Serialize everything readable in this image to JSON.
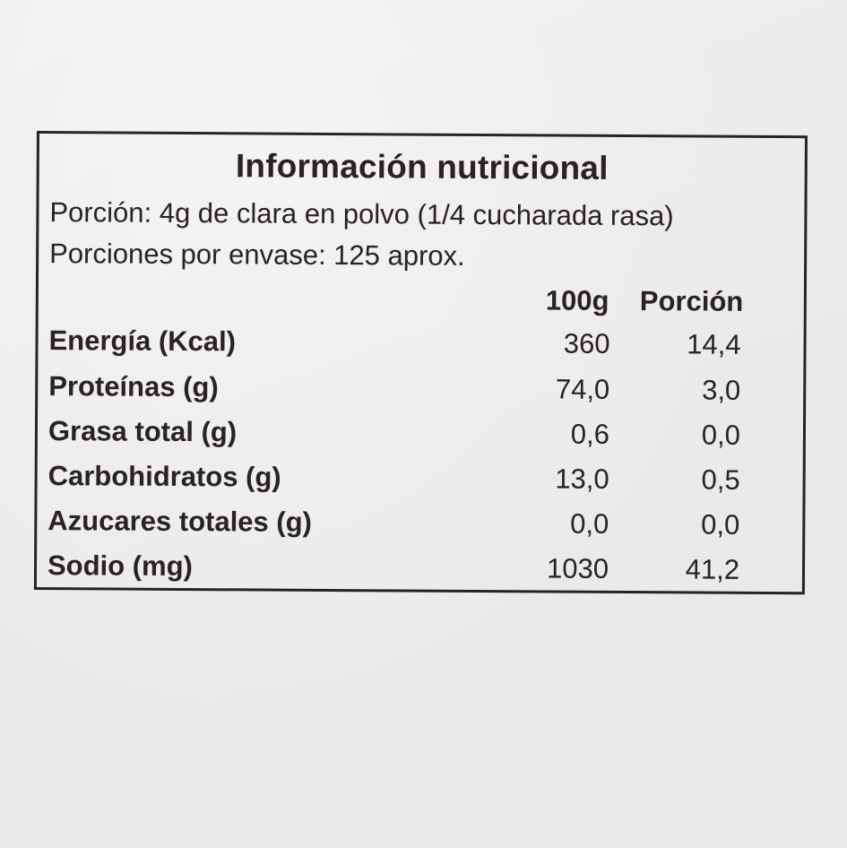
{
  "label": {
    "title": "Información nutricional",
    "serving": "Porción: 4g de clara en polvo (1/4 cucharada rasa)",
    "servings_per_container": "Porciones por envase: 125 aprox.",
    "columns": [
      "100g",
      "Porción"
    ],
    "rows": [
      {
        "name": "Energía (Kcal)",
        "per_100g": "360",
        "per_serving": "14,4"
      },
      {
        "name": "Proteínas (g)",
        "per_100g": "74,0",
        "per_serving": "3,0"
      },
      {
        "name": "Grasa total (g)",
        "per_100g": "0,6",
        "per_serving": "0,0"
      },
      {
        "name": "Carbohidratos (g)",
        "per_100g": "13,0",
        "per_serving": "0,5"
      },
      {
        "name": "Azucares totales (g)",
        "per_100g": "0,0",
        "per_serving": "0,0"
      },
      {
        "name": "Sodio (mg)",
        "per_100g": "1030",
        "per_serving": "41,2"
      }
    ]
  }
}
